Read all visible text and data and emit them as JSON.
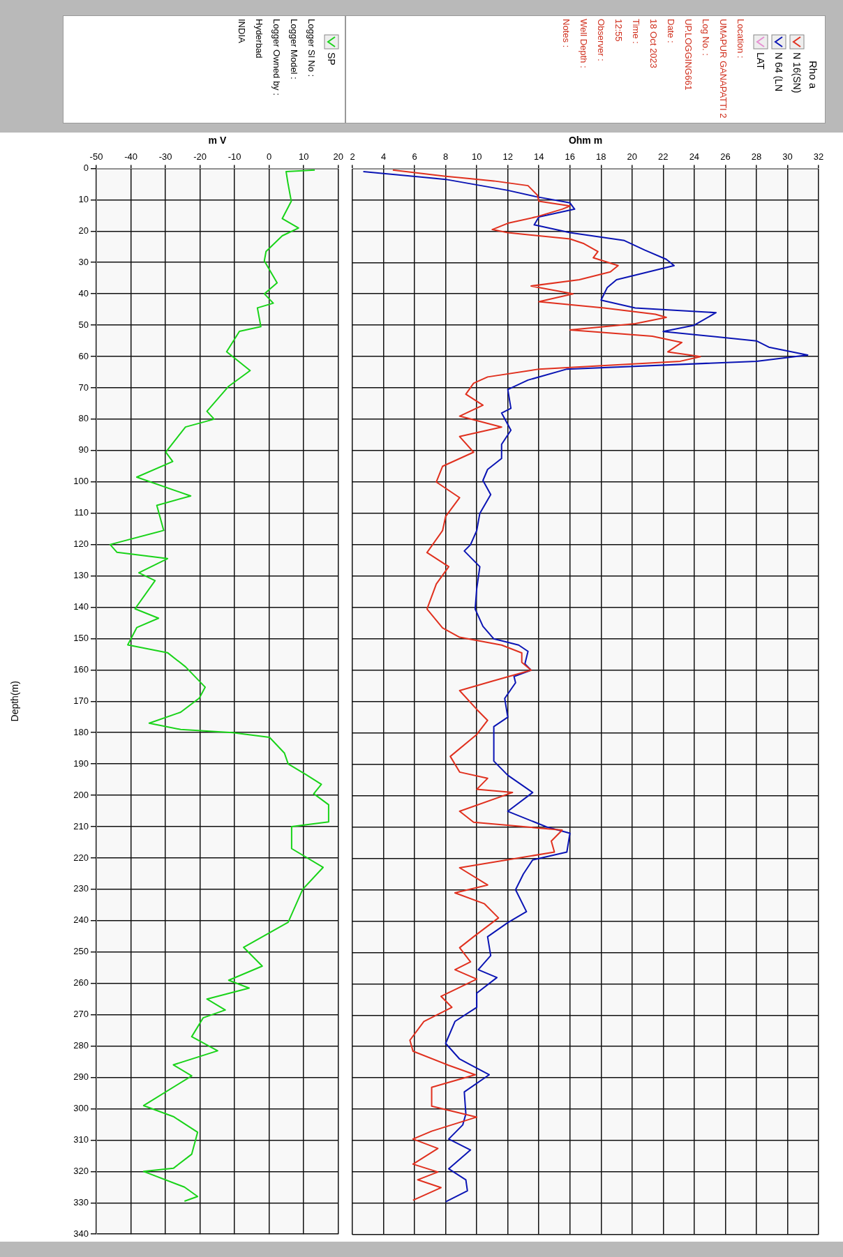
{
  "chart_data": [
    {
      "type": "line",
      "orientation": "horizontal",
      "xlabel": "m V",
      "ylabel": "Depth(m)",
      "xlim": [
        -50,
        20
      ],
      "xticks": [
        -50,
        -40,
        -30,
        -20,
        -10,
        0,
        10,
        20
      ],
      "ylim": [
        340,
        0
      ],
      "yticks": [
        0,
        10,
        20,
        30,
        40,
        50,
        60,
        70,
        80,
        90,
        100,
        110,
        120,
        130,
        140,
        150,
        160,
        170,
        180,
        190,
        200,
        210,
        220,
        230,
        240,
        250,
        260,
        270,
        280,
        290,
        300,
        310,
        320,
        330,
        340
      ],
      "grid": true,
      "legend": "top right",
      "annotations": [
        "Logger Sl No :",
        "Logger Model :",
        "Logger Owned by :",
        "Hyderbad",
        "INDIA"
      ],
      "series": [
        {
          "name": "SP",
          "color": "#19d319",
          "x": [
            0.5,
            1,
            4.5,
            10.5,
            16,
            19,
            21.5,
            26.5,
            29.5,
            36.5,
            40,
            43,
            44.5,
            50.5,
            52,
            58.5,
            64.5,
            69.5,
            77.5,
            80,
            82.5,
            90.5,
            93.5,
            98.5,
            104.5,
            107.5,
            115.5,
            120,
            122.5,
            124.5,
            129,
            131.5,
            140.5,
            143.5,
            146.5,
            152,
            154.5,
            159,
            165.5,
            169,
            173.5,
            177,
            179,
            180,
            181.5,
            186.5,
            190,
            193.5,
            196.5,
            199.5,
            203,
            208.5,
            210,
            217,
            223,
            230,
            240.5,
            248.5,
            254.5,
            259,
            261.5,
            265,
            268.5,
            271,
            277,
            281.5,
            286,
            289.5,
            299,
            302.5,
            307.5,
            314.5,
            319,
            320,
            325,
            328,
            329.5
          ],
          "values": [
            13.2,
            4.9,
            5.4,
            6.4,
            3.8,
            8.5,
            3.8,
            -0.9,
            -1.4,
            2.3,
            -1.4,
            1.2,
            -3.4,
            -2.4,
            -8.6,
            -12.3,
            -5.5,
            -11.7,
            -18,
            -15.9,
            -24.2,
            -29.9,
            -27.9,
            -38.3,
            -22.7,
            -32.5,
            -30.5,
            -46,
            -44,
            -29.4,
            -37.7,
            -33,
            -38.8,
            -32,
            -38.3,
            -40.9,
            -29.4,
            -24.2,
            -18.5,
            -20.2,
            -25.6,
            -34.7,
            -25.6,
            -10.6,
            0.1,
            4.4,
            5.5,
            10.8,
            15.1,
            12.9,
            17.2,
            17.2,
            6.5,
            6.5,
            15.6,
            9.7,
            5.5,
            -7.4,
            -2,
            -11.7,
            -5.8,
            -18,
            -12.7,
            -19.1,
            -22.4,
            -14.9,
            -27.7,
            -22.4,
            -36.3,
            -27.7,
            -20.7,
            -22.4,
            -27.7,
            -36.3,
            -24.5,
            -20.7,
            -24.5
          ]
        }
      ]
    },
    {
      "type": "line",
      "orientation": "horizontal",
      "xlabel": "Ohm m",
      "xlim": [
        2,
        32
      ],
      "xticks": [
        2,
        4,
        6,
        8,
        10,
        12,
        14,
        16,
        18,
        20,
        22,
        24,
        26,
        28,
        30,
        32
      ],
      "ylim": [
        340,
        0
      ],
      "yticks": [
        0,
        10,
        20,
        30,
        40,
        50,
        60,
        70,
        80,
        90,
        100,
        110,
        120,
        130,
        140,
        150,
        160,
        170,
        180,
        190,
        200,
        210,
        220,
        230,
        240,
        250,
        260,
        270,
        280,
        290,
        300,
        310,
        320,
        330,
        340
      ],
      "tick_labels": "x",
      "grid": true,
      "legend": "top right",
      "legend_title": "Rho a",
      "annotations": [
        "Location :",
        "UMAPUR GANAPATTI 2",
        "Log No. :",
        "UP.LOGGING661",
        "Date :",
        "18 Oct 2023",
        "Time :",
        "12:55",
        "Observer :",
        "Well Depth :",
        "Notes :"
      ],
      "series": [
        {
          "name": "N 16(SN)",
          "color": "#e0301e",
          "x": [
            0.5,
            2.5,
            4,
            5.5,
            8.5,
            10.5,
            12,
            13,
            15.5,
            17.5,
            19.5,
            20.5,
            22.5,
            24,
            26.5,
            28.5,
            31,
            33,
            35.5,
            37.5,
            40,
            42.5,
            44.5,
            46.5,
            47.5,
            49.5,
            51.5,
            53.5,
            55.5,
            58.5,
            60,
            61.5,
            64,
            66.5,
            68.5,
            72,
            75.5,
            79,
            82.5,
            85.5,
            90.5,
            95,
            100,
            105,
            111,
            115.5,
            122.5,
            127,
            132.5,
            140.5,
            146.5,
            149.5,
            152,
            154.5,
            157.5,
            160,
            163.5,
            166.5,
            172.5,
            176,
            180.5,
            187.5,
            192.5,
            194.5,
            198,
            199,
            205,
            208.5,
            211,
            214.5,
            218,
            223,
            228.5,
            231,
            234.5,
            239,
            245,
            248.5,
            253,
            255.5,
            258.5,
            264,
            267.5,
            272,
            278,
            281.5,
            286,
            289,
            293,
            299,
            302.5,
            307,
            309.5,
            312.5,
            317.5,
            320,
            322.5,
            325,
            329
          ],
          "values": [
            4.6,
            8,
            11.1,
            13.3,
            13.9,
            14,
            16,
            15.5,
            13.8,
            12,
            11,
            12,
            16,
            16.9,
            17.8,
            17.5,
            19.1,
            18.6,
            16.6,
            13.5,
            16.2,
            14,
            18.2,
            21.5,
            22.2,
            20.2,
            16,
            21.3,
            23.2,
            22.3,
            24.4,
            23.1,
            14,
            10.7,
            9.8,
            9.3,
            10.4,
            8.9,
            11.6,
            8.9,
            9.8,
            7.8,
            7.4,
            8.9,
            8,
            7.8,
            6.8,
            8.2,
            7.4,
            6.8,
            7.8,
            8.9,
            11.6,
            12.9,
            12.9,
            13.5,
            11,
            8.9,
            10,
            10.7,
            10,
            8.3,
            8.9,
            10.7,
            10,
            12.3,
            8.9,
            9.8,
            15.5,
            14.8,
            15,
            8.9,
            10.7,
            8.6,
            10.5,
            11.4,
            9.8,
            8.9,
            9.6,
            8.6,
            10,
            7.7,
            8.4,
            6.6,
            5.7,
            5.9,
            8.2,
            9.9,
            7.1,
            7.1,
            10,
            7.1,
            5.9,
            7.5,
            5.9,
            7.5,
            6.2,
            7.7,
            5.9
          ]
        },
        {
          "name": "N 64 (LN",
          "color": "#0a14b4",
          "x": [
            1,
            3.5,
            7,
            9,
            11,
            13,
            15.5,
            18,
            20.5,
            23,
            26,
            29,
            31,
            35.5,
            38,
            42,
            44.5,
            46,
            50,
            52,
            55,
            57,
            59.5,
            61.5,
            64,
            67.5,
            70.5,
            76.5,
            78,
            83.5,
            88,
            92.5,
            96,
            99.5,
            104,
            110,
            115.5,
            120,
            122,
            127,
            134,
            140.5,
            146,
            150,
            152,
            154,
            158,
            160,
            162,
            164,
            169,
            175,
            178,
            189,
            193.5,
            199,
            205,
            210,
            212,
            218,
            220.5,
            225,
            230,
            237,
            240.5,
            245,
            251,
            255.5,
            258,
            263,
            267.5,
            272,
            279,
            284,
            289,
            294.5,
            301.5,
            305,
            309.5,
            313,
            319,
            322.5,
            326,
            329.5
          ],
          "values": [
            2.7,
            8,
            12,
            13.8,
            16,
            16.3,
            14,
            13.7,
            16,
            19.5,
            20.8,
            22.2,
            22.7,
            19,
            18.4,
            18,
            20.2,
            25.4,
            24,
            22,
            28,
            28.8,
            31.3,
            28,
            15.8,
            13.3,
            12,
            12.2,
            11.6,
            12.2,
            11.6,
            11.6,
            10.7,
            10.4,
            10.9,
            10.2,
            10,
            9.6,
            9.2,
            10.2,
            10,
            9.9,
            10.4,
            11.1,
            12.7,
            13.3,
            13.1,
            13.5,
            12.4,
            12.5,
            11.8,
            12,
            11.1,
            11.1,
            12,
            13.6,
            12,
            14.5,
            16,
            15.8,
            13.6,
            13,
            12.5,
            13.2,
            12,
            10.7,
            10.9,
            10.1,
            11.3,
            10,
            10,
            8.6,
            8,
            8.9,
            10.8,
            9.2,
            9.3,
            9.1,
            8.2,
            9.6,
            8.2,
            9.3,
            9.4,
            8
          ]
        },
        {
          "name": "LAT",
          "color": "#e68fd2"
        }
      ]
    }
  ]
}
